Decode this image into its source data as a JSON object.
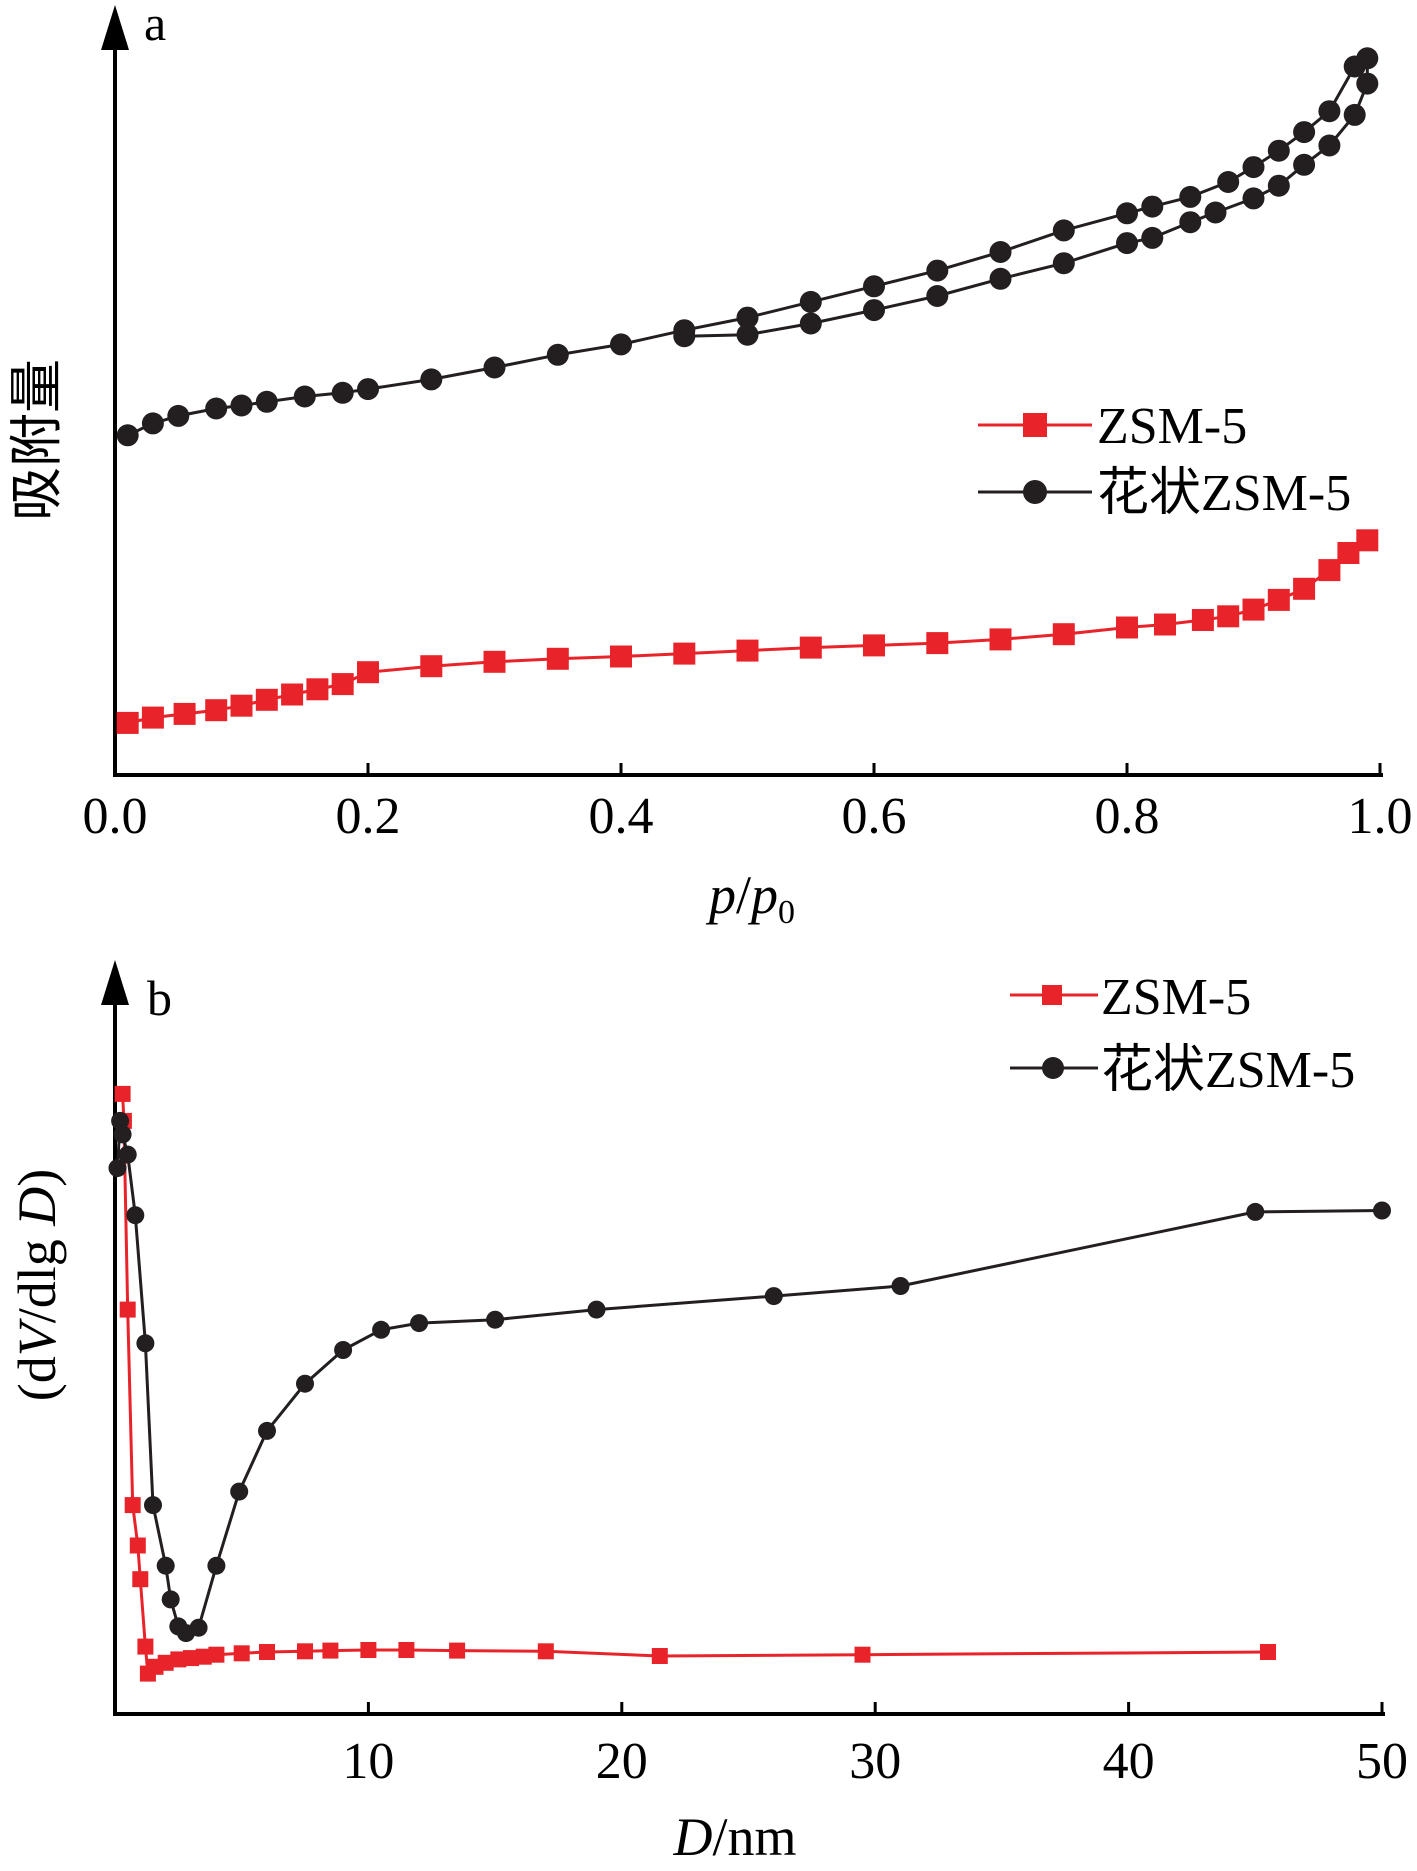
{
  "chart_data": [
    {
      "type": "line",
      "panel_label": "a",
      "xlabel_italic": "p",
      "xlabel_sep": "/",
      "xlabel_italic2": "p",
      "xlabel_sub": "0",
      "ylabel": "吸附量",
      "xlim": [
        0,
        1.0
      ],
      "ylim": [
        0,
        100
      ],
      "x_ticks": [
        "0.0",
        "0.2",
        "0.4",
        "0.6",
        "0.8",
        "1.0"
      ],
      "y_ticks_labeled": false,
      "legend_position": "right-middle",
      "series": [
        {
          "name": "ZSM-5",
          "color": "#e8242a",
          "marker": "square",
          "x": [
            0.01,
            0.03,
            0.055,
            0.08,
            0.1,
            0.12,
            0.14,
            0.16,
            0.18,
            0.2,
            0.25,
            0.3,
            0.35,
            0.4,
            0.45,
            0.5,
            0.55,
            0.6,
            0.65,
            0.7,
            0.75,
            0.8,
            0.83,
            0.86,
            0.88,
            0.9,
            0.92,
            0.94,
            0.96,
            0.975,
            0.99
          ],
          "y": [
            7,
            7.7,
            8.2,
            8.7,
            9.3,
            10.1,
            10.8,
            11.5,
            12.2,
            13.8,
            14.6,
            15.2,
            15.6,
            15.9,
            16.3,
            16.7,
            17.1,
            17.4,
            17.7,
            18.2,
            18.9,
            19.8,
            20.2,
            20.8,
            21.3,
            22.2,
            23.5,
            25,
            27.5,
            29.8,
            31.5
          ]
        },
        {
          "name": "花状ZSM-5",
          "color": "#231f20",
          "marker": "circle",
          "x": [
            0.01,
            0.03,
            0.05,
            0.08,
            0.1,
            0.12,
            0.15,
            0.18,
            0.2,
            0.25,
            0.3,
            0.35,
            0.4,
            0.45,
            0.5,
            0.55,
            0.6,
            0.65,
            0.7,
            0.75,
            0.8,
            0.82,
            0.85,
            0.88,
            0.9,
            0.92,
            0.94,
            0.96,
            0.98,
            0.99,
            0.99,
            0.98,
            0.96,
            0.94,
            0.92,
            0.9,
            0.87,
            0.85,
            0.82,
            0.8,
            0.75,
            0.7,
            0.65,
            0.6,
            0.55,
            0.5,
            0.45
          ],
          "y": [
            45.6,
            47.2,
            48.2,
            49.2,
            49.6,
            50.1,
            50.8,
            51.3,
            51.8,
            53.1,
            54.7,
            56.4,
            57.8,
            59.7,
            61.4,
            63.5,
            65.6,
            67.7,
            70.2,
            73.1,
            75.4,
            76.3,
            77.6,
            79.6,
            81.6,
            83.8,
            86.3,
            89.1,
            95.1,
            96.2,
            92.8,
            88.6,
            84.5,
            81.9,
            79.1,
            77.4,
            75.5,
            74.2,
            72.1,
            71.4,
            68.7,
            66.6,
            64.3,
            62.4,
            60.6,
            59.1,
            58.9
          ]
        }
      ]
    },
    {
      "type": "line",
      "panel_label": "b",
      "xlabel_italic": "D",
      "xlabel_rest": "/nm",
      "ylabel_pre": "(d",
      "ylabel_it1": "V",
      "ylabel_mid": "/dlg ",
      "ylabel_it2": "D",
      "ylabel_post": ")",
      "xlim": [
        0,
        50
      ],
      "ylim": [
        0,
        100
      ],
      "x_ticks": [
        "10",
        "20",
        "30",
        "40",
        "50"
      ],
      "y_ticks_labeled": false,
      "legend_position": "top-right",
      "series": [
        {
          "name": "ZSM-5",
          "color": "#e8242a",
          "marker": "square",
          "x": [
            0.3,
            0.35,
            0.5,
            0.7,
            0.9,
            1.0,
            1.2,
            1.3,
            1.6,
            2.0,
            2.5,
            3.0,
            3.5,
            4.0,
            5.0,
            6.0,
            7.5,
            8.5,
            10.0,
            11.5,
            13.5,
            17.0,
            21.5,
            29.5,
            45.5
          ],
          "y": [
            92,
            88,
            60,
            31,
            25,
            20,
            10,
            6,
            7,
            7.6,
            8.1,
            8.3,
            8.5,
            8.8,
            9.0,
            9.2,
            9.3,
            9.4,
            9.5,
            9.5,
            9.4,
            9.3,
            8.6,
            8.8,
            9.2
          ]
        },
        {
          "name": "花状ZSM-5",
          "color": "#231f20",
          "marker": "circle",
          "x": [
            0.1,
            0.2,
            0.3,
            0.5,
            0.8,
            1.2,
            1.5,
            2.0,
            2.2,
            2.5,
            2.8,
            3.3,
            4.0,
            4.9,
            6.0,
            7.5,
            9.0,
            10.5,
            12.0,
            15.0,
            19.0,
            26.0,
            31.0,
            45.0,
            50.0
          ],
          "y": [
            81,
            88,
            86,
            83,
            74,
            55,
            31,
            22,
            17,
            13,
            12,
            12.8,
            22,
            33,
            42,
            49,
            54,
            57,
            58,
            58.5,
            60,
            62,
            63.5,
            74.5,
            74.7
          ]
        }
      ]
    }
  ]
}
